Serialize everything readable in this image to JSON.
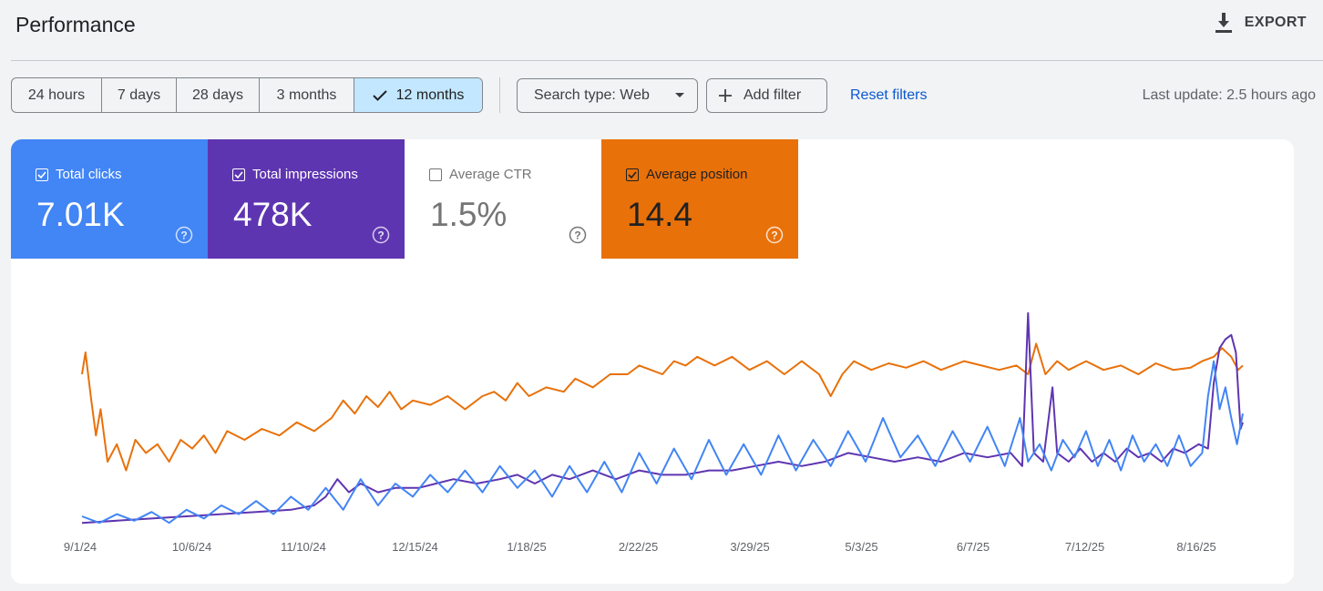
{
  "header": {
    "title": "Performance",
    "export_label": "EXPORT"
  },
  "date_ranges": [
    {
      "label": "24 hours",
      "active": false
    },
    {
      "label": "7 days",
      "active": false
    },
    {
      "label": "28 days",
      "active": false
    },
    {
      "label": "3 months",
      "active": false
    },
    {
      "label": "12 months",
      "active": true
    }
  ],
  "filters": {
    "search_type": "Search type: Web",
    "add_filter": "Add filter",
    "reset": "Reset filters",
    "last_update": "Last update: 2.5 hours ago"
  },
  "metrics": {
    "clicks": {
      "label": "Total clicks",
      "value": "7.01K",
      "checked": true,
      "color": "#4285f4"
    },
    "impressions": {
      "label": "Total impressions",
      "value": "478K",
      "checked": true,
      "color": "#5e35b1"
    },
    "ctr": {
      "label": "Average CTR",
      "value": "1.5%",
      "checked": false
    },
    "position": {
      "label": "Average position",
      "value": "14.4",
      "checked": true,
      "color": "#e8710a"
    }
  },
  "chart_data": {
    "type": "line",
    "x_ticks": [
      "9/1/24",
      "10/6/24",
      "11/10/24",
      "12/15/24",
      "1/18/25",
      "2/22/25",
      "3/29/25",
      "5/3/25",
      "6/7/25",
      "7/12/25",
      "8/16/25"
    ],
    "grid": false,
    "series": [
      {
        "name": "Average position",
        "color": "#e8710a",
        "points": [
          [
            0,
            0.3
          ],
          [
            0.003,
            0.2
          ],
          [
            0.008,
            0.42
          ],
          [
            0.012,
            0.58
          ],
          [
            0.016,
            0.46
          ],
          [
            0.022,
            0.7
          ],
          [
            0.03,
            0.62
          ],
          [
            0.038,
            0.74
          ],
          [
            0.046,
            0.6
          ],
          [
            0.055,
            0.66
          ],
          [
            0.065,
            0.62
          ],
          [
            0.075,
            0.7
          ],
          [
            0.085,
            0.6
          ],
          [
            0.095,
            0.64
          ],
          [
            0.105,
            0.58
          ],
          [
            0.115,
            0.66
          ],
          [
            0.125,
            0.56
          ],
          [
            0.14,
            0.6
          ],
          [
            0.155,
            0.55
          ],
          [
            0.17,
            0.58
          ],
          [
            0.185,
            0.52
          ],
          [
            0.2,
            0.56
          ],
          [
            0.215,
            0.5
          ],
          [
            0.225,
            0.42
          ],
          [
            0.235,
            0.48
          ],
          [
            0.245,
            0.4
          ],
          [
            0.255,
            0.45
          ],
          [
            0.265,
            0.38
          ],
          [
            0.275,
            0.46
          ],
          [
            0.285,
            0.42
          ],
          [
            0.3,
            0.44
          ],
          [
            0.315,
            0.4
          ],
          [
            0.33,
            0.46
          ],
          [
            0.345,
            0.4
          ],
          [
            0.355,
            0.38
          ],
          [
            0.365,
            0.42
          ],
          [
            0.375,
            0.34
          ],
          [
            0.385,
            0.4
          ],
          [
            0.4,
            0.36
          ],
          [
            0.415,
            0.38
          ],
          [
            0.425,
            0.32
          ],
          [
            0.44,
            0.36
          ],
          [
            0.455,
            0.3
          ],
          [
            0.47,
            0.3
          ],
          [
            0.48,
            0.26
          ],
          [
            0.49,
            0.28
          ],
          [
            0.5,
            0.3
          ],
          [
            0.51,
            0.24
          ],
          [
            0.52,
            0.26
          ],
          [
            0.53,
            0.22
          ],
          [
            0.545,
            0.26
          ],
          [
            0.56,
            0.22
          ],
          [
            0.575,
            0.28
          ],
          [
            0.59,
            0.24
          ],
          [
            0.605,
            0.3
          ],
          [
            0.62,
            0.24
          ],
          [
            0.635,
            0.3
          ],
          [
            0.645,
            0.4
          ],
          [
            0.655,
            0.3
          ],
          [
            0.665,
            0.24
          ],
          [
            0.68,
            0.28
          ],
          [
            0.695,
            0.25
          ],
          [
            0.71,
            0.27
          ],
          [
            0.725,
            0.24
          ],
          [
            0.74,
            0.28
          ],
          [
            0.76,
            0.24
          ],
          [
            0.775,
            0.26
          ],
          [
            0.79,
            0.28
          ],
          [
            0.805,
            0.26
          ],
          [
            0.815,
            0.3
          ],
          [
            0.822,
            0.16
          ],
          [
            0.83,
            0.3
          ],
          [
            0.84,
            0.24
          ],
          [
            0.85,
            0.28
          ],
          [
            0.865,
            0.24
          ],
          [
            0.88,
            0.28
          ],
          [
            0.895,
            0.26
          ],
          [
            0.91,
            0.3
          ],
          [
            0.925,
            0.25
          ],
          [
            0.94,
            0.28
          ],
          [
            0.955,
            0.27
          ],
          [
            0.965,
            0.24
          ],
          [
            0.975,
            0.22
          ],
          [
            0.982,
            0.18
          ],
          [
            0.99,
            0.22
          ],
          [
            0.996,
            0.28
          ],
          [
            1.0,
            0.26
          ]
        ]
      },
      {
        "name": "Total impressions",
        "color": "#5e35b1",
        "points": [
          [
            0,
            0.98
          ],
          [
            0.03,
            0.97
          ],
          [
            0.06,
            0.96
          ],
          [
            0.09,
            0.95
          ],
          [
            0.12,
            0.94
          ],
          [
            0.15,
            0.93
          ],
          [
            0.18,
            0.92
          ],
          [
            0.2,
            0.9
          ],
          [
            0.21,
            0.86
          ],
          [
            0.22,
            0.78
          ],
          [
            0.23,
            0.84
          ],
          [
            0.24,
            0.8
          ],
          [
            0.255,
            0.84
          ],
          [
            0.27,
            0.82
          ],
          [
            0.29,
            0.82
          ],
          [
            0.305,
            0.8
          ],
          [
            0.32,
            0.78
          ],
          [
            0.34,
            0.8
          ],
          [
            0.36,
            0.78
          ],
          [
            0.375,
            0.76
          ],
          [
            0.39,
            0.8
          ],
          [
            0.405,
            0.76
          ],
          [
            0.42,
            0.78
          ],
          [
            0.44,
            0.74
          ],
          [
            0.46,
            0.78
          ],
          [
            0.48,
            0.74
          ],
          [
            0.5,
            0.76
          ],
          [
            0.52,
            0.76
          ],
          [
            0.54,
            0.74
          ],
          [
            0.56,
            0.74
          ],
          [
            0.58,
            0.72
          ],
          [
            0.6,
            0.7
          ],
          [
            0.62,
            0.72
          ],
          [
            0.64,
            0.7
          ],
          [
            0.66,
            0.66
          ],
          [
            0.68,
            0.68
          ],
          [
            0.7,
            0.7
          ],
          [
            0.72,
            0.68
          ],
          [
            0.74,
            0.7
          ],
          [
            0.76,
            0.66
          ],
          [
            0.78,
            0.68
          ],
          [
            0.8,
            0.66
          ],
          [
            0.81,
            0.72
          ],
          [
            0.815,
            0.02
          ],
          [
            0.82,
            0.66
          ],
          [
            0.828,
            0.7
          ],
          [
            0.836,
            0.36
          ],
          [
            0.84,
            0.66
          ],
          [
            0.85,
            0.7
          ],
          [
            0.86,
            0.64
          ],
          [
            0.87,
            0.7
          ],
          [
            0.88,
            0.66
          ],
          [
            0.89,
            0.7
          ],
          [
            0.9,
            0.64
          ],
          [
            0.91,
            0.68
          ],
          [
            0.92,
            0.66
          ],
          [
            0.93,
            0.7
          ],
          [
            0.94,
            0.64
          ],
          [
            0.95,
            0.66
          ],
          [
            0.962,
            0.62
          ],
          [
            0.97,
            0.64
          ],
          [
            0.975,
            0.34
          ],
          [
            0.98,
            0.18
          ],
          [
            0.985,
            0.14
          ],
          [
            0.99,
            0.12
          ],
          [
            0.994,
            0.2
          ],
          [
            0.998,
            0.55
          ],
          [
            1.0,
            0.52
          ]
        ]
      },
      {
        "name": "Total clicks",
        "color": "#4285f4",
        "points": [
          [
            0,
            0.95
          ],
          [
            0.015,
            0.98
          ],
          [
            0.03,
            0.94
          ],
          [
            0.045,
            0.97
          ],
          [
            0.06,
            0.93
          ],
          [
            0.075,
            0.98
          ],
          [
            0.09,
            0.92
          ],
          [
            0.105,
            0.96
          ],
          [
            0.12,
            0.9
          ],
          [
            0.135,
            0.94
          ],
          [
            0.15,
            0.88
          ],
          [
            0.165,
            0.94
          ],
          [
            0.18,
            0.86
          ],
          [
            0.195,
            0.92
          ],
          [
            0.21,
            0.82
          ],
          [
            0.225,
            0.92
          ],
          [
            0.24,
            0.78
          ],
          [
            0.255,
            0.9
          ],
          [
            0.27,
            0.8
          ],
          [
            0.285,
            0.86
          ],
          [
            0.3,
            0.76
          ],
          [
            0.315,
            0.84
          ],
          [
            0.33,
            0.74
          ],
          [
            0.345,
            0.84
          ],
          [
            0.36,
            0.72
          ],
          [
            0.375,
            0.82
          ],
          [
            0.39,
            0.74
          ],
          [
            0.405,
            0.86
          ],
          [
            0.42,
            0.72
          ],
          [
            0.435,
            0.84
          ],
          [
            0.45,
            0.7
          ],
          [
            0.465,
            0.84
          ],
          [
            0.48,
            0.66
          ],
          [
            0.495,
            0.8
          ],
          [
            0.51,
            0.64
          ],
          [
            0.525,
            0.78
          ],
          [
            0.54,
            0.6
          ],
          [
            0.555,
            0.76
          ],
          [
            0.57,
            0.62
          ],
          [
            0.585,
            0.76
          ],
          [
            0.6,
            0.58
          ],
          [
            0.615,
            0.74
          ],
          [
            0.63,
            0.6
          ],
          [
            0.645,
            0.72
          ],
          [
            0.66,
            0.56
          ],
          [
            0.675,
            0.7
          ],
          [
            0.69,
            0.5
          ],
          [
            0.705,
            0.68
          ],
          [
            0.72,
            0.58
          ],
          [
            0.735,
            0.72
          ],
          [
            0.75,
            0.56
          ],
          [
            0.765,
            0.7
          ],
          [
            0.78,
            0.54
          ],
          [
            0.795,
            0.72
          ],
          [
            0.808,
            0.5
          ],
          [
            0.815,
            0.7
          ],
          [
            0.825,
            0.62
          ],
          [
            0.835,
            0.74
          ],
          [
            0.845,
            0.6
          ],
          [
            0.855,
            0.68
          ],
          [
            0.865,
            0.56
          ],
          [
            0.875,
            0.72
          ],
          [
            0.885,
            0.6
          ],
          [
            0.895,
            0.74
          ],
          [
            0.905,
            0.58
          ],
          [
            0.915,
            0.7
          ],
          [
            0.925,
            0.62
          ],
          [
            0.935,
            0.72
          ],
          [
            0.945,
            0.58
          ],
          [
            0.955,
            0.72
          ],
          [
            0.965,
            0.66
          ],
          [
            0.97,
            0.4
          ],
          [
            0.975,
            0.24
          ],
          [
            0.98,
            0.46
          ],
          [
            0.985,
            0.36
          ],
          [
            0.99,
            0.5
          ],
          [
            0.995,
            0.62
          ],
          [
            1.0,
            0.48
          ]
        ]
      }
    ]
  }
}
